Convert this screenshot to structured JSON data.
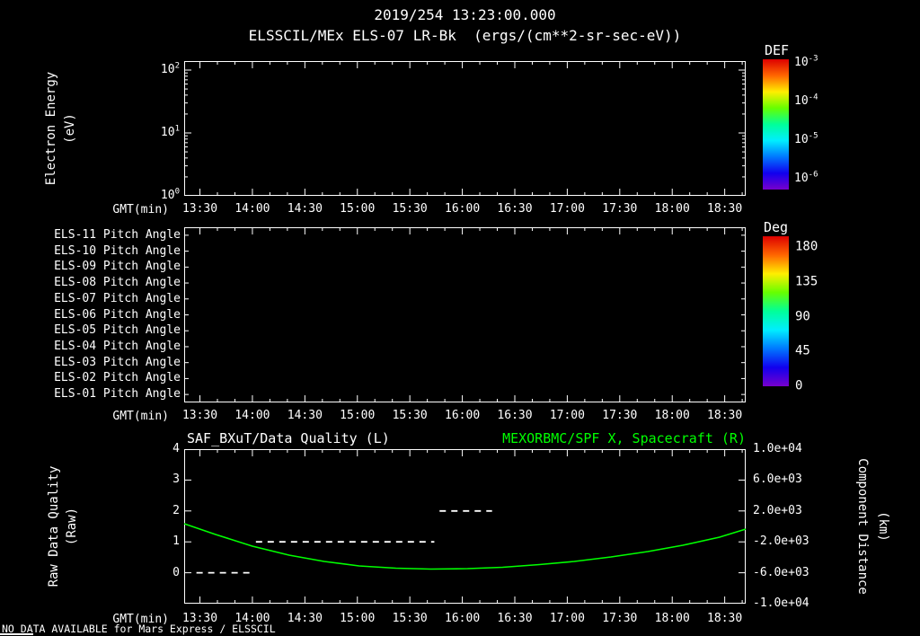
{
  "header": {
    "datetime": "2019/254 13:23:00.000",
    "title": "ELSSCIL/MEx ELS-07 LR-Bk  (ergs/(cm**2-sr-sec-eV))"
  },
  "time_axis": {
    "label": "GMT(min)",
    "start": "13:21",
    "end": "18:42",
    "ticks": [
      "13:30",
      "14:00",
      "14:30",
      "15:00",
      "15:30",
      "16:00",
      "16:30",
      "17:00",
      "17:30",
      "18:00",
      "18:30"
    ]
  },
  "colors": {
    "foreground": "#ffffff",
    "background": "#000000",
    "accent_green": "#00ff00",
    "rainbow": [
      "#dd0000",
      "#ff6600",
      "#ffee00",
      "#66ff00",
      "#00ff99",
      "#00eeff",
      "#0077ff",
      "#1100ee",
      "#7700cc"
    ]
  },
  "panel_energy": {
    "ylabel_line1": "Electron Energy",
    "ylabel_line2": "(eV)",
    "yticks": [
      "10^2",
      "10^1",
      "10^0"
    ],
    "colorbar": {
      "title": "DEF",
      "ticks": [
        "10^-3",
        "10^-4",
        "10^-5",
        "10^-6"
      ]
    }
  },
  "panel_pitch": {
    "row_labels": [
      "ELS-11 Pitch Angle",
      "ELS-10 Pitch Angle",
      "ELS-09 Pitch Angle",
      "ELS-08 Pitch Angle",
      "ELS-07 Pitch Angle",
      "ELS-06 Pitch Angle",
      "ELS-05 Pitch Angle",
      "ELS-04 Pitch Angle",
      "ELS-03 Pitch Angle",
      "ELS-02 Pitch Angle",
      "ELS-01 Pitch Angle"
    ],
    "colorbar": {
      "title": "Deg",
      "ticks": [
        "180",
        "135",
        "90",
        "45",
        "0"
      ]
    }
  },
  "panel_quality": {
    "title_left": "SAF_BXuT/Data Quality (L)",
    "title_right": "MEXORBMC/SPF X, Spacecraft (R)",
    "ylabel_left_line1": "Raw Data Quality",
    "ylabel_left_line2": "(Raw)",
    "yticks_left": [
      "4",
      "3",
      "2",
      "1",
      "0"
    ],
    "ylabel_right_line1": "Component Distance",
    "ylabel_right_line2": "(km)",
    "yticks_right": [
      "1.0e+04",
      "6.0e+03",
      "2.0e+03",
      "-2.0e+03",
      "-6.0e+03",
      "-1.0e+04"
    ]
  },
  "footer": {
    "status": "NO DATA AVAILABLE for Mars Express / ELSSCIL"
  },
  "chart_data": [
    {
      "type": "heatmap",
      "title": "ELSSCIL/MEx ELS-07 LR-Bk",
      "units": "ergs/(cm**2-sr-sec-eV)",
      "xlabel": "GMT(min)",
      "x_range": [
        "13:21",
        "18:42"
      ],
      "x_ticks": [
        "13:30",
        "14:00",
        "14:30",
        "15:00",
        "15:30",
        "16:00",
        "16:30",
        "17:00",
        "17:30",
        "18:00",
        "18:30"
      ],
      "ylabel": "Electron Energy (eV)",
      "yscale": "log",
      "y_ticks": [
        100,
        10,
        1
      ],
      "colorbar": {
        "label": "DEF",
        "ticks": [
          0.001,
          0.0001,
          1e-05,
          1e-06
        ]
      },
      "values": [],
      "note": "no data plotted"
    },
    {
      "type": "heatmap",
      "title": "ELS Pitch Angles",
      "xlabel": "GMT(min)",
      "x_range": [
        "13:21",
        "18:42"
      ],
      "rows": [
        "ELS-11",
        "ELS-10",
        "ELS-09",
        "ELS-08",
        "ELS-07",
        "ELS-06",
        "ELS-05",
        "ELS-04",
        "ELS-03",
        "ELS-02",
        "ELS-01"
      ],
      "colorbar": {
        "label": "Deg",
        "ticks": [
          180,
          135,
          90,
          45,
          0
        ]
      },
      "values": [],
      "note": "no data plotted"
    },
    {
      "type": "line",
      "xlabel": "GMT(min)",
      "x_range": [
        "13:21",
        "18:42"
      ],
      "axes": {
        "left": {
          "label": "Raw Data Quality (Raw)",
          "lim": [
            -1,
            4
          ],
          "ticks": [
            4,
            3,
            2,
            1,
            0
          ]
        },
        "right": {
          "label": "Component Distance (km)",
          "lim": [
            -10000,
            10000
          ],
          "ticks": [
            10000,
            6000,
            2000,
            -2000,
            -6000,
            -10000
          ]
        }
      },
      "series": [
        {
          "name": "SAF_BXuT/Data Quality (L)",
          "axis": "left",
          "color": "#ffffff",
          "line_style": "dashed",
          "segments": [
            {
              "value": 0,
              "start": "13:28",
              "end": "14:01"
            },
            {
              "value": 1,
              "start": "14:02",
              "end": "15:44"
            },
            {
              "value": 2,
              "start": "15:47",
              "end": "16:17"
            }
          ]
        },
        {
          "name": "MEXORBMC/SPF X, Spacecraft (R)",
          "axis": "right",
          "color": "#00ff00",
          "line_style": "solid",
          "points": [
            [
              "13:21",
              350
            ],
            [
              "13:39",
              -1050
            ],
            [
              "14:00",
              -2560
            ],
            [
              "14:21",
              -3720
            ],
            [
              "14:41",
              -4540
            ],
            [
              "15:01",
              -5120
            ],
            [
              "15:22",
              -5410
            ],
            [
              "15:42",
              -5520
            ],
            [
              "16:03",
              -5470
            ],
            [
              "16:23",
              -5290
            ],
            [
              "16:44",
              -4940
            ],
            [
              "17:04",
              -4540
            ],
            [
              "17:25",
              -3950
            ],
            [
              "17:46",
              -3260
            ],
            [
              "18:06",
              -2440
            ],
            [
              "18:27",
              -1400
            ],
            [
              "18:42",
              -350
            ]
          ]
        }
      ]
    }
  ]
}
